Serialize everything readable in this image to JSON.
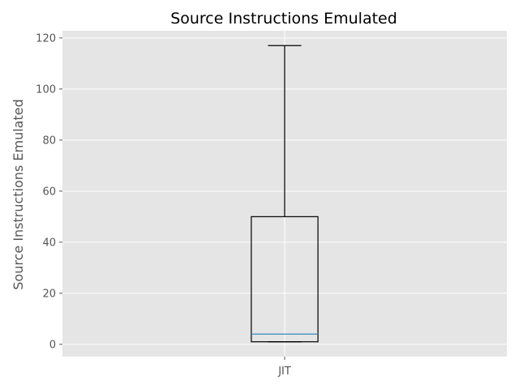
{
  "chart_data": {
    "type": "box",
    "title": "Source Instructions Emulated",
    "xlabel": "",
    "ylabel": "Source Instructions Emulated",
    "categories": [
      "JIT"
    ],
    "boxes": [
      {
        "category": "JIT",
        "whisker_low": 1,
        "q1": 1,
        "median": 4,
        "q3": 50,
        "whisker_high": 117
      }
    ],
    "ylim": [
      -4.8,
      122.8
    ],
    "yticks": [
      0,
      20,
      40,
      60,
      80,
      100,
      120
    ],
    "grid": true,
    "colors": {
      "plot_background": "#e5e5e5",
      "grid": "#ffffff",
      "box_edge": "#000000",
      "median": "#348abd",
      "tick_text": "#555555",
      "title_text": "#000000"
    }
  }
}
